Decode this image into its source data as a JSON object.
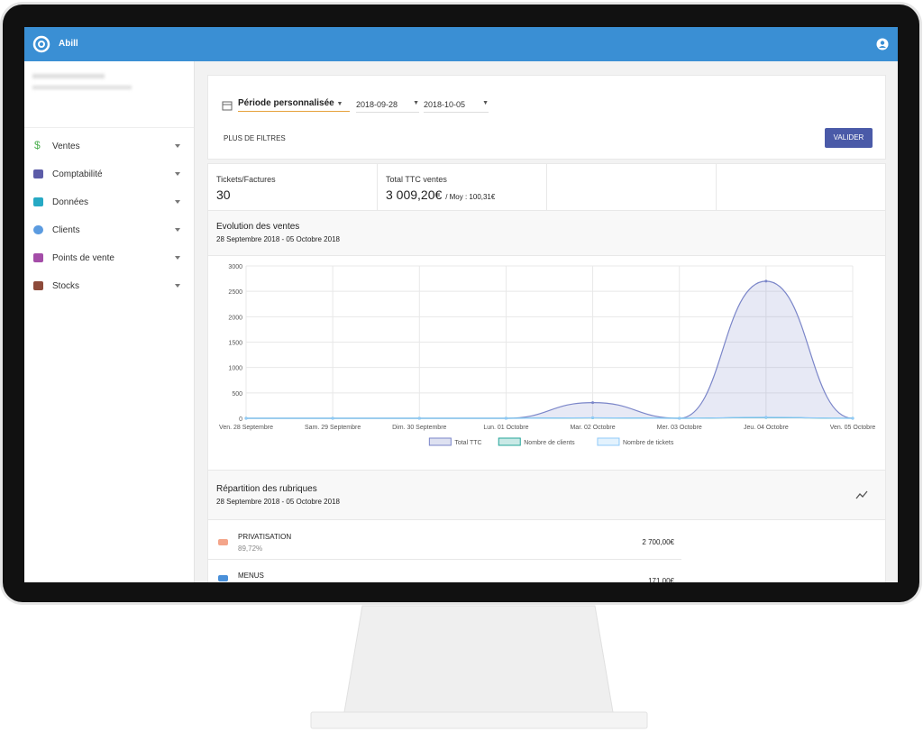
{
  "app": {
    "name": "Abill"
  },
  "sidebar": {
    "items": [
      "Ventes",
      "Comptabilité",
      "Données",
      "Clients",
      "Points de vente",
      "Stocks"
    ]
  },
  "filters": {
    "period": "Période personnalisée",
    "start": "2018-09-28",
    "end": "2018-10-05",
    "more": "PLUS DE FILTRES",
    "submit": "VALIDER"
  },
  "stats": [
    {
      "label": "Tickets/Factures",
      "value": 30
    },
    {
      "label": "Total TTC ventes",
      "value": "3 009,20€",
      "sub": "/ Moy : 100,31€"
    }
  ],
  "chart_data": {
    "type": "line",
    "title": "Evolution des ventes",
    "subtitle": "28 Septembre 2018 - 05 Octobre 2018",
    "categories": [
      "Ven. 28 Septembre",
      "Sam. 29 Septembre",
      "Dim. 30 Septembre",
      "Lun. 01 Octobre",
      "Mar. 02 Octobre",
      "Mer. 03 Octobre",
      "Jeu. 04 Octobre",
      "Ven. 05 Octobre"
    ],
    "series": [
      {
        "name": "Total TTC",
        "color": "#7b86c9",
        "values": [
          0,
          0,
          0,
          0,
          309,
          0,
          2700,
          0
        ]
      },
      {
        "name": "Nombre de clients",
        "color": "#26a69a",
        "values": [
          0,
          0,
          0,
          0,
          8,
          0,
          15,
          0
        ]
      },
      {
        "name": "Nombre de tickets",
        "color": "#90caf9",
        "values": [
          0,
          0,
          0,
          0,
          10,
          0,
          20,
          0
        ]
      }
    ],
    "ylim": [
      0,
      3000
    ],
    "yticks": [
      0,
      500,
      1000,
      1500,
      2000,
      2500,
      3000
    ],
    "grid": true,
    "legend": "bottom"
  },
  "breakdown": {
    "title": "Répartition des rubriques",
    "subtitle": "28 Septembre 2018 - 05 Octobre 2018",
    "items": [
      {
        "name": "PRIVATISATION",
        "percent": "89,72%",
        "amount": "2 700,00€",
        "color": "#f4a58a"
      },
      {
        "name": "MENUS",
        "amount": "171,00€",
        "color": "#4a90d9"
      }
    ]
  }
}
